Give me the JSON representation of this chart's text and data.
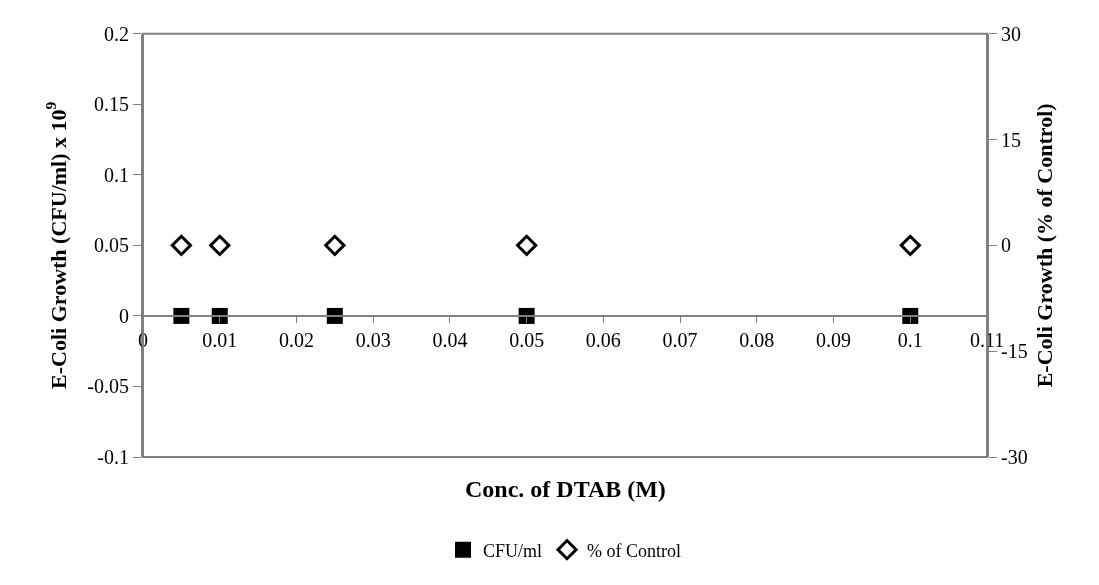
{
  "chart_data": {
    "type": "scatter",
    "xlabel": "Conc. of DTAB (M)",
    "ylabel": "E-Coli Growth (CFU/ml) x 10$^{9}$",
    "y2label": "E-Coli Growth (% of Control)",
    "x": [
      0.005,
      0.01,
      0.025,
      0.05,
      0.1
    ],
    "series": [
      {
        "name": "CFU/ml",
        "color": "#000000",
        "marker": "square",
        "values": [
          0,
          0,
          0,
          0,
          0
        ]
      },
      {
        "name": "% of Control",
        "color": "#000000",
        "marker": "diamond-open",
        "axis": "y2",
        "values": [
          0,
          0,
          0,
          0,
          0
        ]
      }
    ],
    "xlim": [
      0,
      0.11
    ],
    "xticks": [
      0,
      0.01,
      0.02,
      0.03,
      0.04,
      0.05,
      0.06,
      0.07,
      0.08,
      0.09,
      0.1,
      0.11
    ],
    "ylim": [
      -0.1,
      0.2
    ],
    "yticks": [
      -0.1,
      -0.05,
      0,
      0.05,
      0.1,
      0.15,
      0.2
    ],
    "y2lim": [
      -30,
      30
    ],
    "y2ticks": [
      -30,
      -15,
      0,
      15,
      30
    ],
    "grid": false,
    "legend": "bottom"
  }
}
